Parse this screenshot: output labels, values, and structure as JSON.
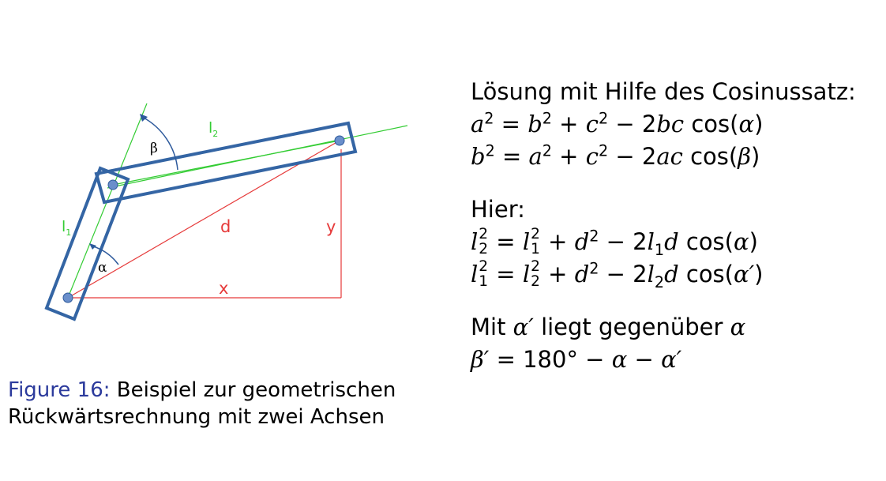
{
  "diagram": {
    "labels": {
      "beta": "β",
      "alpha": "α",
      "l1_main": "l",
      "l1_sub": "1",
      "l2_main": "l",
      "l2_sub": "2",
      "d": "d",
      "x": "x",
      "y": "y"
    },
    "colors": {
      "arm_outline": "#3465a4",
      "axis_line": "#33cc33",
      "construction": "#e63a3a",
      "joint": "#6a8fcb",
      "arrow": "#2e5a9c"
    }
  },
  "caption": {
    "figure_label": "Figure 16:",
    "line1": "Beispiel zur geometrischen",
    "line2": "Rückwärtsrechnung mit zwei Achsen"
  },
  "formulas": {
    "heading": "Lösung mit Hilfe des Cosinussatz:",
    "hier": "Hier:",
    "mit_text": "Mit",
    "mit_rest": "liegt gegenüber",
    "alpha": "α",
    "alpha_prime": "α′",
    "beta_prime": "β′",
    "deg_180": "180°"
  }
}
